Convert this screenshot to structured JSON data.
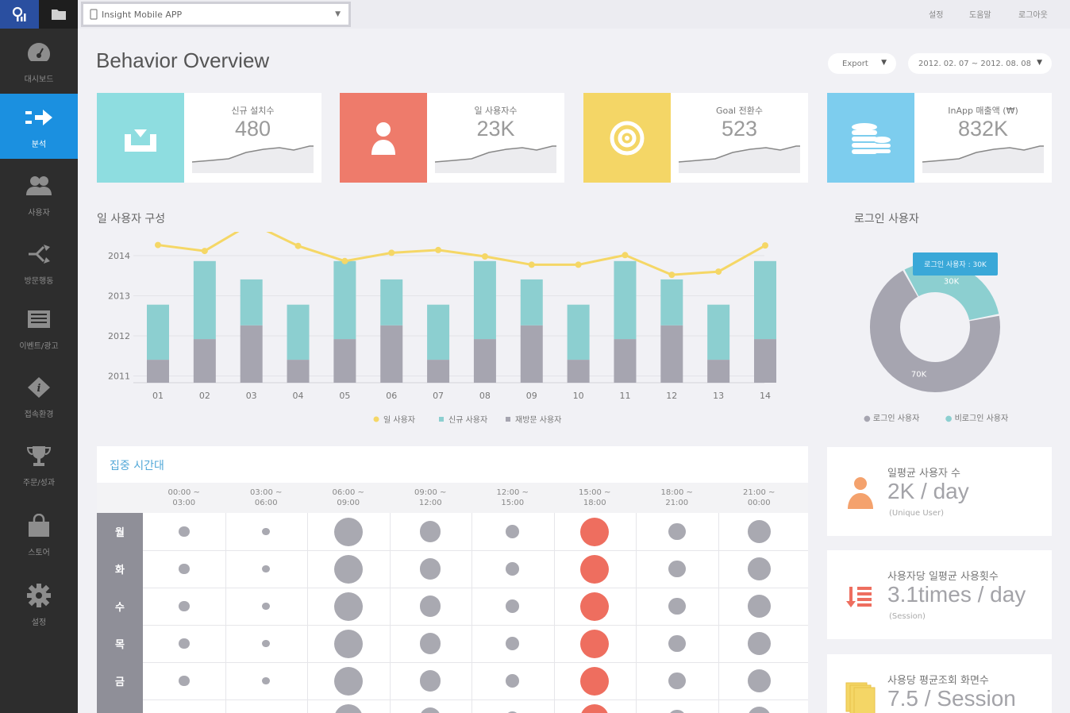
{
  "topbar": {
    "app_select": "Insight Mobile APP",
    "links": [
      "설정",
      "도움말",
      "로그아웃"
    ]
  },
  "sidebar": {
    "items": [
      {
        "label": "대시보드",
        "icon": "gauge-icon"
      },
      {
        "label": "분석",
        "icon": "arrow-right-icon",
        "active": true
      },
      {
        "label": "사용자",
        "icon": "users-icon"
      },
      {
        "label": "방문행동",
        "icon": "share-icon"
      },
      {
        "label": "이벤트/광고",
        "icon": "inbox-icon"
      },
      {
        "label": "접속환경",
        "icon": "info-icon"
      },
      {
        "label": "주문/성과",
        "icon": "trophy-icon"
      },
      {
        "label": "스토어",
        "icon": "bag-icon"
      },
      {
        "label": "설정",
        "icon": "gear-icon"
      }
    ]
  },
  "page": {
    "title": "Behavior Overview",
    "export_label": "Export",
    "date_range": "2012. 02. 07 ~ 2012. 08. 08"
  },
  "kpis": [
    {
      "label": "신규 설치수",
      "value": "480",
      "color": "#8edde0",
      "icon": "download-tray-icon"
    },
    {
      "label": "일 사용자수",
      "value": "23K",
      "color": "#ee7b6b",
      "icon": "user-icon"
    },
    {
      "label": "Goal 전환수",
      "value": "523",
      "color": "#f4d666",
      "icon": "target-icon"
    },
    {
      "label": "InApp 매출액 (₩)",
      "value": "832K",
      "color": "#7dcdee",
      "icon": "coins-icon"
    }
  ],
  "daily_users": {
    "section_title": "일 사용자 구성",
    "legend": [
      "일 사용자",
      "신규 사용자",
      "재방문 사용자"
    ]
  },
  "chart_data": {
    "type": "bar",
    "categories": [
      "01",
      "02",
      "03",
      "04",
      "05",
      "06",
      "07",
      "08",
      "09",
      "10",
      "11",
      "12",
      "13",
      "14"
    ],
    "y_tick_labels": [
      "2014",
      "2013",
      "2012",
      "2011"
    ],
    "series": [
      {
        "name": "재방문 사용자",
        "kind": "bar-stack-bottom",
        "color": "#a6a5b0",
        "values": [
          0.5,
          0.95,
          1.25,
          0.5,
          0.95,
          1.25,
          0.5,
          0.95,
          1.25,
          0.5,
          0.95,
          1.25,
          0.5,
          0.95
        ]
      },
      {
        "name": "신규 사용자",
        "kind": "bar-stack-top",
        "color": "#8ccfd0",
        "values": [
          1.2,
          1.7,
          1.0,
          1.2,
          1.7,
          1.0,
          1.2,
          1.7,
          1.0,
          1.2,
          1.7,
          1.0,
          1.2,
          1.7
        ]
      },
      {
        "name": "일 사용자",
        "kind": "line",
        "color": "#f5d766",
        "values": [
          3.0,
          2.87,
          3.47,
          2.98,
          2.65,
          2.83,
          2.89,
          2.75,
          2.57,
          2.57,
          2.78,
          2.35,
          2.42,
          2.99
        ]
      }
    ],
    "ylim": [
      0,
      3.2
    ]
  },
  "login": {
    "title": "로그인 사용자",
    "tooltip": "로그인 사용자 : 30K",
    "slices": [
      {
        "name": "로그인 사용자",
        "value": 30,
        "label": "30K",
        "color": "#8ccfd0"
      },
      {
        "name": "비로그인 사용자",
        "value": 70,
        "label": "70K",
        "color": "#a6a5b0"
      }
    ],
    "legend": [
      "로그인 사용자",
      "비로그인 사용자"
    ]
  },
  "heatmap": {
    "title": "집중 시간대",
    "times": [
      [
        "00:00 ~",
        "03:00"
      ],
      [
        "03:00 ~",
        "06:00"
      ],
      [
        "06:00 ~",
        "09:00"
      ],
      [
        "09:00 ~",
        "12:00"
      ],
      [
        "12:00 ~",
        "15:00"
      ],
      [
        "15:00 ~",
        "18:00"
      ],
      [
        "18:00 ~",
        "21:00"
      ],
      [
        "21:00 ~",
        "00:00"
      ]
    ],
    "days": [
      "월",
      "화",
      "수",
      "목",
      "금"
    ],
    "intensity": [
      0.25,
      0.12,
      1.0,
      0.68,
      0.36,
      1.0,
      0.52,
      0.76
    ],
    "peak_index": 5,
    "peak_color": "#ee6e5f",
    "dot_color": "#a9a9b1"
  },
  "stats": [
    {
      "title": "일평균 사용자 수",
      "value": "2K / day",
      "sub": "(Unique User)",
      "icon": "user-icon",
      "color": "#f4a26d"
    },
    {
      "title": "사용자당 일평균 사용횟수",
      "value": "3.1times / day",
      "sub": "(Session)",
      "icon": "list-sort-icon",
      "color": "#ee6e5f"
    },
    {
      "title": "사용당 평균조회 화면수",
      "value": "7.5 / Session",
      "sub": "",
      "icon": "pages-icon",
      "color": "#f4d666"
    }
  ]
}
